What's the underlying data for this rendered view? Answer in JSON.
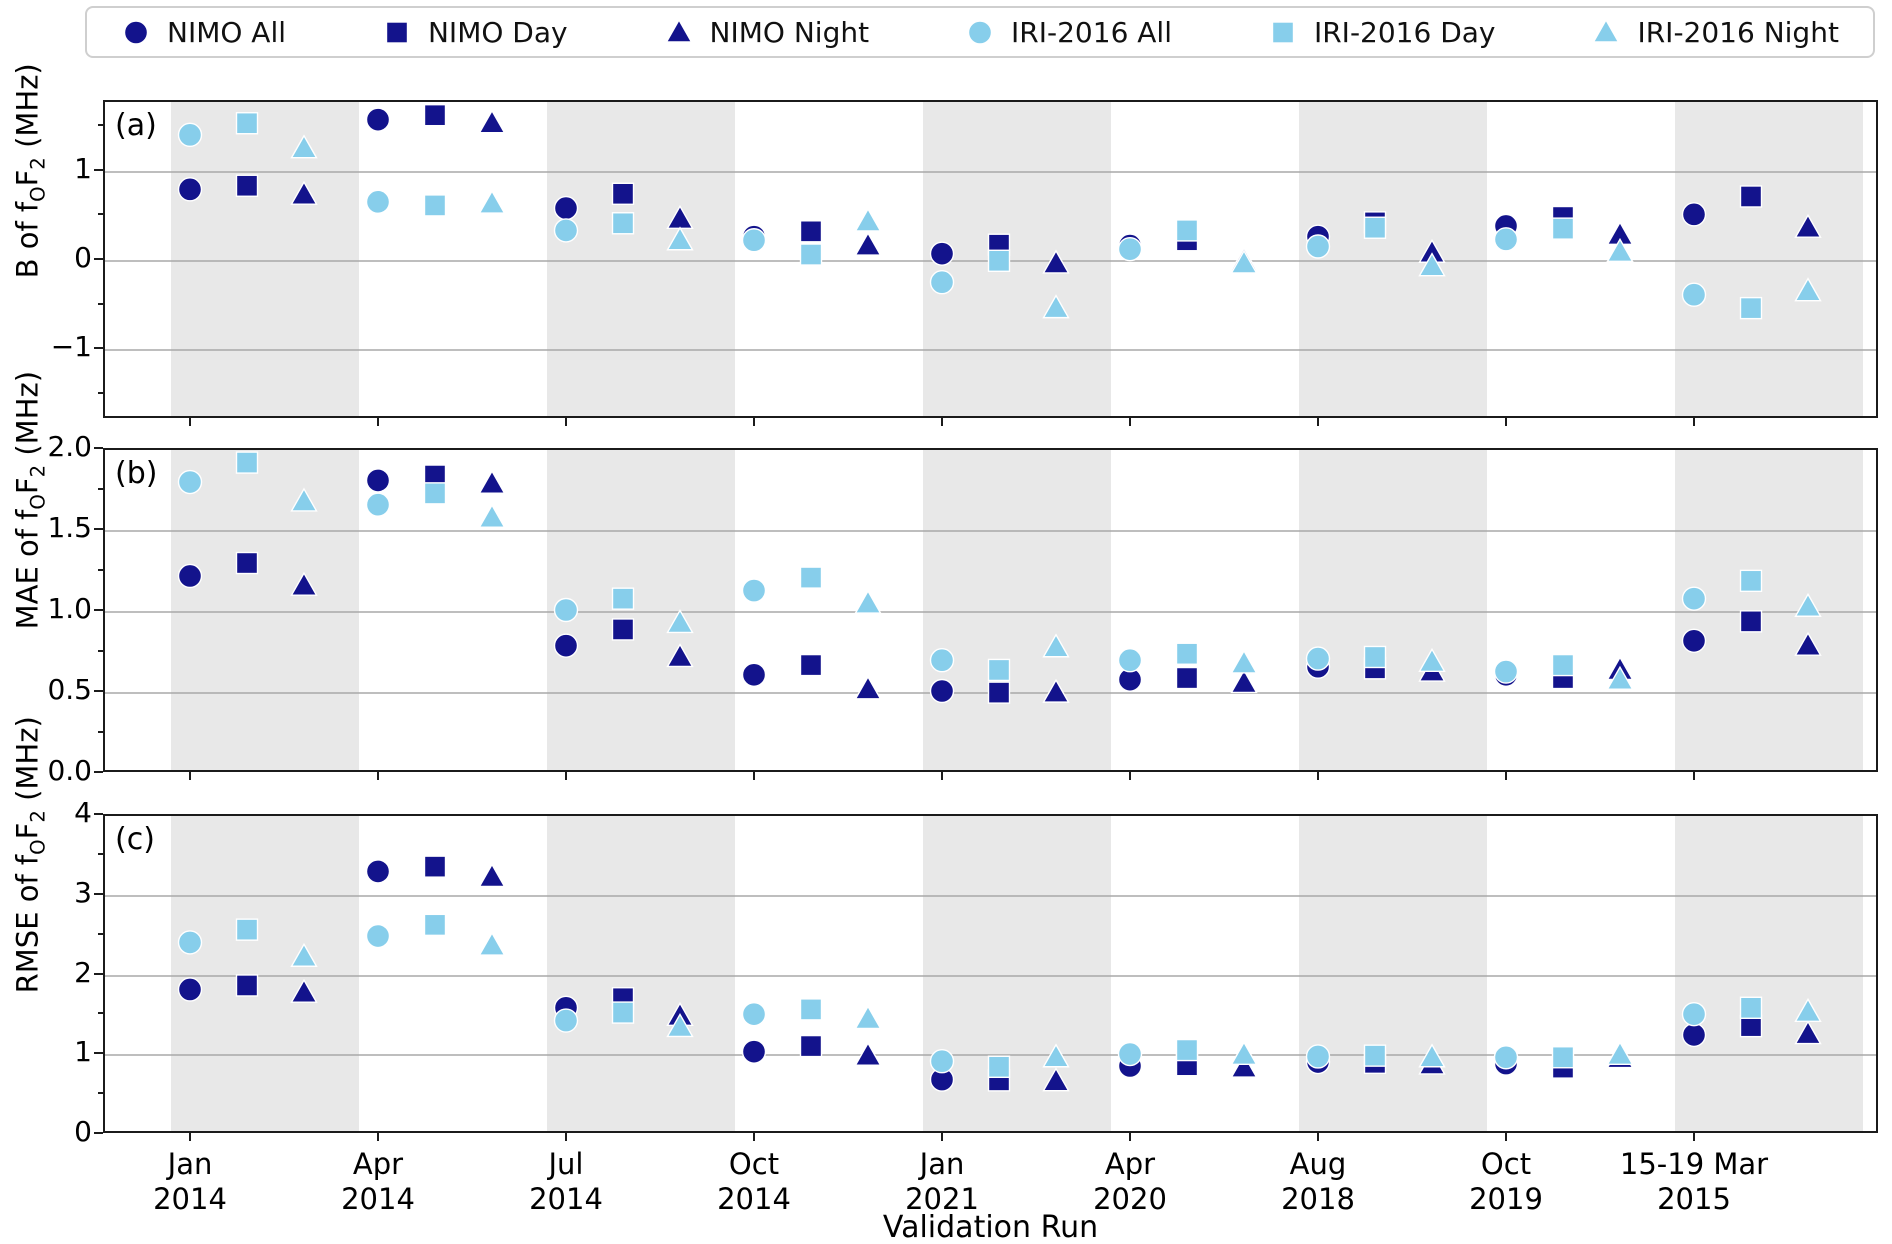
{
  "colors": {
    "nimo": "#13138c",
    "iri": "#87ceeb",
    "band": "#e8e8e8",
    "grid": "#a8a8a8",
    "spine": "#1b1b1b",
    "marker_edge": "#ffffff"
  },
  "legend": {
    "items": [
      {
        "label": "NIMO All",
        "color_key": "nimo",
        "marker": "circle"
      },
      {
        "label": "NIMO Day",
        "color_key": "nimo",
        "marker": "square"
      },
      {
        "label": "NIMO Night",
        "color_key": "nimo",
        "marker": "triangle"
      },
      {
        "label": "IRI-2016 All",
        "color_key": "iri",
        "marker": "circle"
      },
      {
        "label": "IRI-2016 Day",
        "color_key": "iri",
        "marker": "square"
      },
      {
        "label": "IRI-2016 Night",
        "color_key": "iri",
        "marker": "triangle"
      }
    ]
  },
  "xlabel": "Validation Run",
  "categories": [
    {
      "line1": "Jan",
      "line2": "2014"
    },
    {
      "line1": "Apr",
      "line2": "2014"
    },
    {
      "line1": "Jul",
      "line2": "2014"
    },
    {
      "line1": "Oct",
      "line2": "2014"
    },
    {
      "line1": "Jan",
      "line2": "2021"
    },
    {
      "line1": "Apr",
      "line2": "2020"
    },
    {
      "line1": "Aug",
      "line2": "2018"
    },
    {
      "line1": "Oct",
      "line2": "2019"
    },
    {
      "line1": "15-19 Mar",
      "line2": "2015"
    }
  ],
  "chart_data": [
    {
      "type": "scatter",
      "panel_letter": "(a)",
      "ylabel": {
        "pre": "B of f",
        "sub_a": "O",
        "mid": "F",
        "sub_b": "2",
        "post": " (MHz)"
      },
      "ylim": [
        -1.78,
        1.78
      ],
      "yticks": [
        {
          "v": 1,
          "label": "1"
        },
        {
          "v": 0,
          "label": "0"
        },
        {
          "v": -1,
          "label": "−1"
        }
      ],
      "minor_yticks": [
        1.5,
        0.5,
        -0.5,
        -1.5
      ],
      "gridlines": [
        1,
        0,
        -1
      ],
      "series": [
        {
          "name": "NIMO All",
          "color_key": "nimo",
          "marker": "circle",
          "values": [
            0.78,
            1.56,
            0.57,
            0.25,
            0.06,
            0.15,
            0.25,
            0.37,
            0.5
          ]
        },
        {
          "name": "NIMO Day",
          "color_key": "nimo",
          "marker": "square",
          "values": [
            0.82,
            1.61,
            0.73,
            0.31,
            0.16,
            0.21,
            0.41,
            0.47,
            0.7
          ]
        },
        {
          "name": "NIMO Night",
          "color_key": "nimo",
          "marker": "triangle",
          "values": [
            0.72,
            1.52,
            0.45,
            0.15,
            -0.05,
            -0.02,
            0.07,
            0.27,
            0.35
          ]
        },
        {
          "name": "IRI-2016 All",
          "color_key": "iri",
          "marker": "circle",
          "values": [
            1.39,
            0.64,
            0.32,
            0.21,
            -0.26,
            0.11,
            0.14,
            0.22,
            -0.4
          ]
        },
        {
          "name": "IRI-2016 Day",
          "color_key": "iri",
          "marker": "square",
          "values": [
            1.52,
            0.6,
            0.4,
            0.05,
            -0.02,
            0.32,
            0.35,
            0.34,
            -0.55
          ]
        },
        {
          "name": "IRI-2016 Night",
          "color_key": "iri",
          "marker": "triangle",
          "values": [
            1.24,
            0.62,
            0.21,
            0.42,
            -0.55,
            -0.05,
            -0.08,
            0.08,
            -0.36
          ]
        }
      ]
    },
    {
      "type": "scatter",
      "panel_letter": "(b)",
      "ylabel": {
        "pre": "MAE of f",
        "sub_a": "O",
        "mid": "F",
        "sub_b": "2",
        "post": " (MHz)"
      },
      "ylim": [
        0,
        2
      ],
      "yticks": [
        {
          "v": 2,
          "label": "2.0"
        },
        {
          "v": 1.5,
          "label": "1.5"
        },
        {
          "v": 1,
          "label": "1.0"
        },
        {
          "v": 0.5,
          "label": "0.5"
        },
        {
          "v": 0,
          "label": "0.0"
        }
      ],
      "minor_yticks": [
        1.75,
        1.25,
        0.75,
        0.25
      ],
      "gridlines": [
        1.5,
        1,
        0.5
      ],
      "series": [
        {
          "name": "NIMO All",
          "color_key": "nimo",
          "marker": "circle",
          "values": [
            1.21,
            1.8,
            0.78,
            0.6,
            0.5,
            0.57,
            0.65,
            0.6,
            0.81
          ]
        },
        {
          "name": "NIMO Day",
          "color_key": "nimo",
          "marker": "square",
          "values": [
            1.29,
            1.83,
            0.88,
            0.66,
            0.49,
            0.58,
            0.64,
            0.58,
            0.93
          ]
        },
        {
          "name": "NIMO Night",
          "color_key": "nimo",
          "marker": "triangle",
          "values": [
            1.15,
            1.78,
            0.71,
            0.51,
            0.49,
            0.55,
            0.62,
            0.63,
            0.78
          ]
        },
        {
          "name": "IRI-2016 All",
          "color_key": "iri",
          "marker": "circle",
          "values": [
            1.79,
            1.65,
            1.0,
            1.12,
            0.69,
            0.69,
            0.7,
            0.62,
            1.07
          ]
        },
        {
          "name": "IRI-2016 Day",
          "color_key": "iri",
          "marker": "square",
          "values": [
            1.91,
            1.72,
            1.07,
            1.2,
            0.63,
            0.73,
            0.71,
            0.66,
            1.18
          ]
        },
        {
          "name": "IRI-2016 Night",
          "color_key": "iri",
          "marker": "triangle",
          "values": [
            1.67,
            1.57,
            0.92,
            1.04,
            0.77,
            0.67,
            0.68,
            0.57,
            1.02
          ]
        }
      ]
    },
    {
      "type": "scatter",
      "panel_letter": "(c)",
      "ylabel": {
        "pre": "RMSE of f",
        "sub_a": "O",
        "mid": "F",
        "sub_b": "2",
        "post": " (MHz)"
      },
      "ylim": [
        0,
        4
      ],
      "yticks": [
        {
          "v": 4,
          "label": "4"
        },
        {
          "v": 3,
          "label": "3"
        },
        {
          "v": 2,
          "label": "2"
        },
        {
          "v": 1,
          "label": "1"
        },
        {
          "v": 0,
          "label": "0"
        }
      ],
      "minor_yticks": [
        3.5,
        2.5,
        1.5,
        0.5
      ],
      "gridlines": [
        3,
        2,
        1
      ],
      "series": [
        {
          "name": "NIMO All",
          "color_key": "nimo",
          "marker": "circle",
          "values": [
            1.8,
            3.28,
            1.57,
            1.02,
            0.67,
            0.84,
            0.89,
            0.87,
            1.23
          ]
        },
        {
          "name": "NIMO Day",
          "color_key": "nimo",
          "marker": "square",
          "values": [
            1.85,
            3.34,
            1.69,
            1.09,
            0.66,
            0.85,
            0.88,
            0.82,
            1.34
          ]
        },
        {
          "name": "NIMO Night",
          "color_key": "nimo",
          "marker": "triangle",
          "values": [
            1.76,
            3.21,
            1.47,
            0.97,
            0.65,
            0.82,
            0.86,
            0.94,
            1.24
          ]
        },
        {
          "name": "IRI-2016 All",
          "color_key": "iri",
          "marker": "circle",
          "values": [
            2.39,
            2.47,
            1.41,
            1.49,
            0.9,
            0.99,
            0.96,
            0.95,
            1.49
          ]
        },
        {
          "name": "IRI-2016 Day",
          "color_key": "iri",
          "marker": "square",
          "values": [
            2.55,
            2.61,
            1.51,
            1.55,
            0.83,
            1.04,
            0.97,
            0.95,
            1.57
          ]
        },
        {
          "name": "IRI-2016 Night",
          "color_key": "iri",
          "marker": "triangle",
          "values": [
            2.21,
            2.35,
            1.33,
            1.43,
            0.95,
            0.98,
            0.95,
            0.98,
            1.52
          ]
        }
      ]
    }
  ]
}
